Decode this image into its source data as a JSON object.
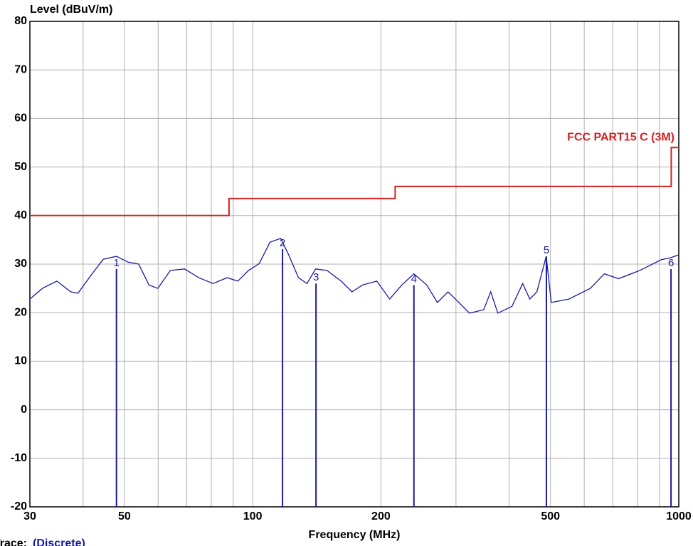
{
  "chart_data": {
    "type": "line",
    "y_label": "Level (dBuV/m)",
    "x_label": "Frequency (MHz)",
    "trace_label": "Trace:",
    "trace_name": "(Discrete)",
    "xlog": true,
    "xlim": [
      30,
      1000
    ],
    "ylim": [
      -20,
      80
    ],
    "yticks": [
      -20,
      -10,
      0,
      10,
      20,
      30,
      40,
      50,
      60,
      70,
      80
    ],
    "xticks": [
      30,
      50,
      100,
      200,
      500,
      1000
    ],
    "xgrid": [
      30,
      40,
      50,
      60,
      70,
      80,
      90,
      100,
      200,
      300,
      400,
      500,
      600,
      700,
      800,
      900,
      1000
    ],
    "grid": true,
    "series": [
      {
        "name": "FCC PART15 C (3M)",
        "color": "#d42020",
        "step": true,
        "x": [
          30,
          88,
          88,
          216,
          216,
          960,
          960,
          1000
        ],
        "values": [
          40,
          40,
          43.5,
          43.5,
          46,
          46,
          54,
          54
        ]
      },
      {
        "color": "#1a1aa0",
        "x": [
          30,
          32.1,
          34.7,
          37.4,
          38.9,
          42.0,
          44.6,
          47.9,
          51.0,
          54.0,
          57.1,
          59.9,
          64.1,
          69.2,
          74.7,
          80.7,
          87.1,
          92.3,
          97.8,
          103.6,
          109.8,
          116.3,
          120.9,
          128.1,
          134.1,
          140.5,
          149.4,
          161.3,
          171.0,
          181.2,
          195.6,
          209.7,
          223.9,
          239.0,
          256.1,
          271.3,
          287.4,
          304.7,
          322.8,
          348.4,
          362.0,
          376.1,
          406.0,
          430.2,
          447.1,
          464.6,
          488.5,
          502.0,
          552.3,
          620.0,
          669.1,
          722.1,
          810.2,
          909.2,
          956,
          1000
        ],
        "values": [
          22.8,
          25,
          26.5,
          24.3,
          24,
          28,
          31,
          31.6,
          30.4,
          30,
          25.7,
          25,
          28.7,
          29,
          27.2,
          26,
          27.2,
          26.5,
          28.7,
          30.1,
          34.5,
          35.3,
          32.3,
          27.2,
          26,
          29,
          28.7,
          26.5,
          24.3,
          25.7,
          26.5,
          22.8,
          25.7,
          28,
          25.7,
          22.1,
          24.3,
          22.1,
          19.9,
          20.6,
          24.3,
          19.9,
          21.3,
          26,
          22.8,
          24.3,
          31.6,
          22.1,
          22.8,
          25,
          28,
          27,
          28.7,
          30.9,
          31.3,
          31.9
        ]
      }
    ],
    "markers": {
      "color": "#1a1aa0",
      "labels": [
        "1",
        "2",
        "3",
        "4",
        "5",
        "6"
      ],
      "x": [
        47.9,
        117.5,
        140.8,
        239,
        489,
        959
      ],
      "values": [
        29,
        33.1,
        26,
        25.7,
        31.6,
        29
      ]
    }
  }
}
